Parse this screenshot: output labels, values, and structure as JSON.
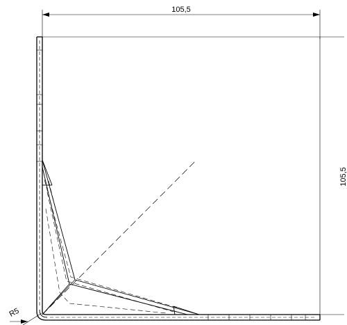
{
  "drawing": {
    "dimensions": {
      "top_width": "105,5",
      "right_height": "105,5",
      "bend_radius": "R5"
    }
  }
}
